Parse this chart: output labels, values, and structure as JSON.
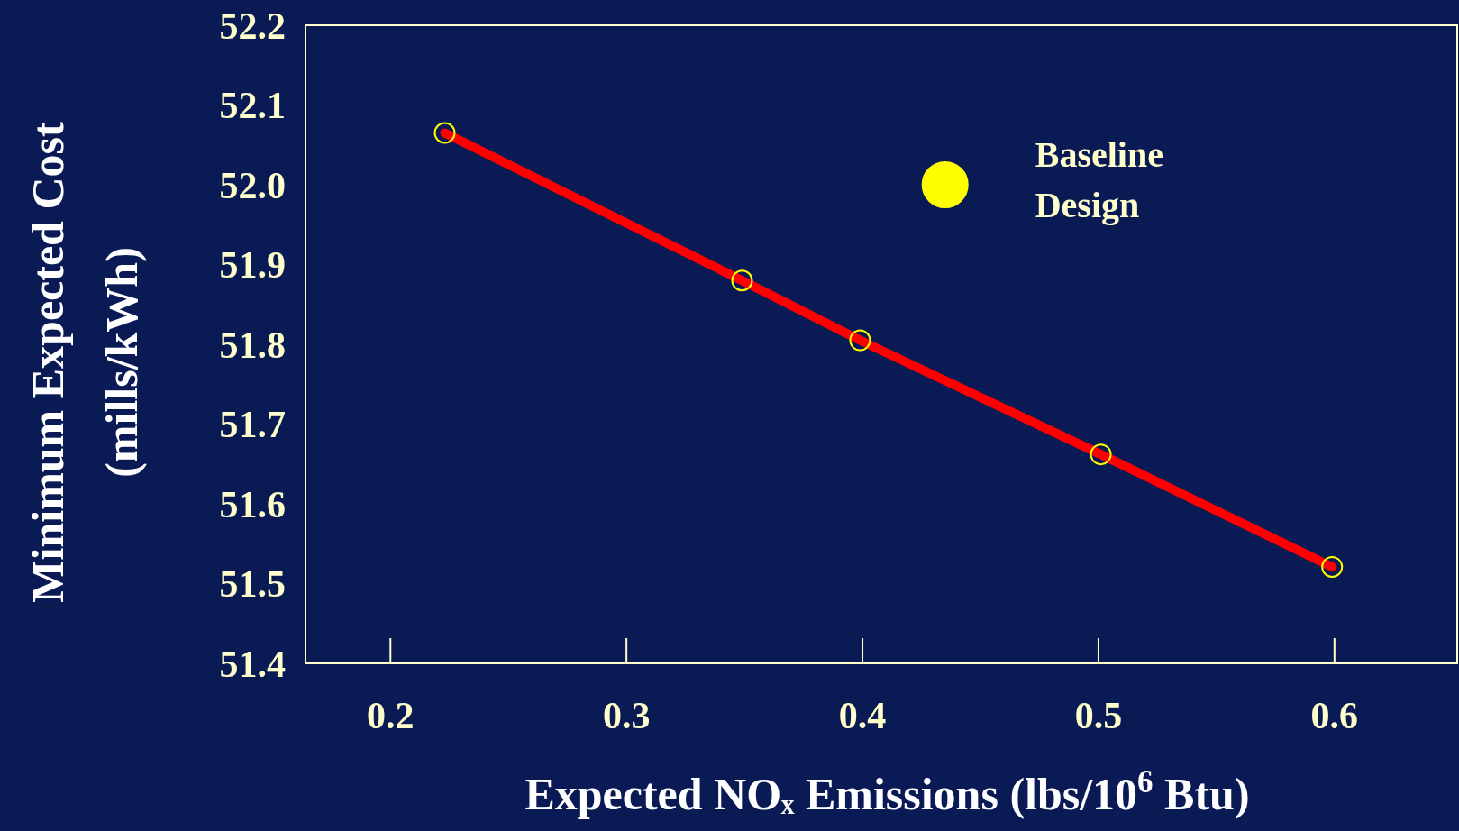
{
  "chart_data": {
    "type": "line",
    "xlabel": "Expected NOₓ Emissions (lbs/10$^{6}$ Btu)",
    "ylabel": "Minimum Expected Cost\n(mills/kWh)",
    "xlim": [
      0.164,
      0.652
    ],
    "xticks": [
      0.2,
      0.3,
      0.4,
      0.5,
      0.6
    ],
    "ylim": [
      51.4,
      52.2
    ],
    "yticks": [
      51.4,
      51.5,
      51.6,
      51.7,
      51.8,
      51.9,
      {
        "value": 52.0,
        "label": "52.0"
      },
      52.1,
      52.2
    ],
    "grid": false,
    "marker": "circle",
    "series": [
      {
        "color": "#ff0000",
        "x": [
          0.223,
          0.349,
          0.399,
          0.501,
          0.599
        ],
        "values": [
          52.065,
          51.88,
          51.805,
          51.662,
          51.521
        ]
      },
      {
        "type": "scatter",
        "name": "Baseline Design",
        "color": "#ffff00",
        "x": [
          0.435
        ],
        "values": [
          52.0
        ]
      }
    ]
  }
}
